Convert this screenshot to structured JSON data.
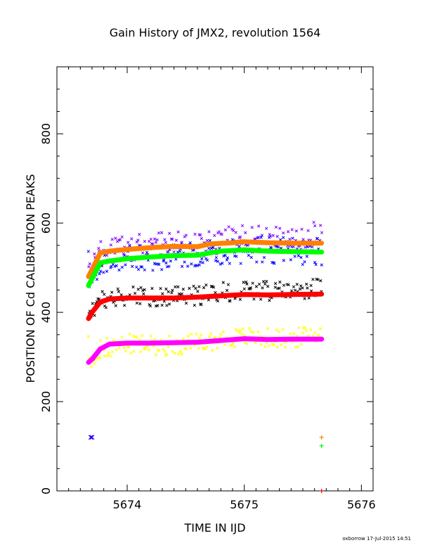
{
  "chart_data": {
    "type": "scatter",
    "title": "Gain History of JMX2, revolution 1564",
    "xlabel": "TIME IN IJD",
    "ylabel": "POSITION OF Cd CALIBRATION PEAKS",
    "xlim": [
      5673.4,
      5676.1
    ],
    "ylim": [
      0,
      950
    ],
    "x_ticks": [
      5674,
      5675,
      5676
    ],
    "x_tick_labels": [
      "5674",
      "5675",
      "5676"
    ],
    "y_ticks": [
      0,
      200,
      400,
      600,
      800
    ],
    "y_tick_labels": [
      "0",
      "200",
      "400",
      "600",
      "800"
    ],
    "grid": false,
    "legend": "none",
    "x_range_of_data": [
      5673.67,
      5675.66
    ],
    "series": [
      {
        "color": "#ff8000",
        "style": "thick-line",
        "points": [
          [
            5673.67,
            480
          ],
          [
            5673.77,
            533
          ],
          [
            5673.85,
            537
          ],
          [
            5674.0,
            541
          ],
          [
            5674.2,
            545
          ],
          [
            5674.4,
            548
          ],
          [
            5674.6,
            547
          ],
          [
            5674.7,
            553
          ],
          [
            5674.9,
            556
          ],
          [
            5675.0,
            558
          ],
          [
            5675.2,
            556
          ],
          [
            5675.4,
            555
          ],
          [
            5675.66,
            555
          ]
        ]
      },
      {
        "color": "#7f00ff",
        "style": "scatter-x",
        "center": [
          [
            5673.67,
            480
          ],
          [
            5673.77,
            535
          ],
          [
            5674.0,
            545
          ],
          [
            5674.3,
            550
          ],
          [
            5674.6,
            552
          ],
          [
            5674.8,
            560
          ],
          [
            5675.0,
            565
          ],
          [
            5675.4,
            560
          ],
          [
            5675.66,
            580
          ]
        ],
        "spread": 30
      },
      {
        "color": "#00ff00",
        "style": "thick-line",
        "points": [
          [
            5673.67,
            460
          ],
          [
            5673.77,
            511
          ],
          [
            5673.85,
            515
          ],
          [
            5674.0,
            520
          ],
          [
            5674.2,
            524
          ],
          [
            5674.4,
            527
          ],
          [
            5674.6,
            528
          ],
          [
            5674.7,
            533
          ],
          [
            5674.8,
            537
          ],
          [
            5675.0,
            540
          ],
          [
            5675.2,
            537
          ],
          [
            5675.4,
            536
          ],
          [
            5675.66,
            535
          ]
        ]
      },
      {
        "color": "#0000ff",
        "style": "scatter-x",
        "center": [
          [
            5673.67,
            465
          ],
          [
            5673.77,
            510
          ],
          [
            5674.0,
            520
          ],
          [
            5674.3,
            525
          ],
          [
            5674.6,
            528
          ],
          [
            5674.8,
            535
          ],
          [
            5675.0,
            540
          ],
          [
            5675.4,
            538
          ],
          [
            5675.66,
            535
          ]
        ],
        "spread": 30
      },
      {
        "color": "#ff0000",
        "style": "thick-line",
        "points": [
          [
            5673.67,
            386
          ],
          [
            5673.7,
            400
          ],
          [
            5673.77,
            423
          ],
          [
            5673.85,
            430
          ],
          [
            5674.0,
            432
          ],
          [
            5674.2,
            432
          ],
          [
            5674.4,
            432
          ],
          [
            5674.6,
            434
          ],
          [
            5674.8,
            437
          ],
          [
            5675.0,
            440
          ],
          [
            5675.2,
            439
          ],
          [
            5675.4,
            440
          ],
          [
            5675.66,
            441
          ]
        ]
      },
      {
        "color": "#000000",
        "style": "scatter-x",
        "center": [
          [
            5673.67,
            390
          ],
          [
            5673.77,
            425
          ],
          [
            5674.0,
            435
          ],
          [
            5674.3,
            435
          ],
          [
            5674.6,
            437
          ],
          [
            5674.8,
            445
          ],
          [
            5675.0,
            450
          ],
          [
            5675.4,
            445
          ],
          [
            5675.66,
            460
          ]
        ],
        "spread": 22
      },
      {
        "color": "#ff00ff",
        "style": "thick-line",
        "points": [
          [
            5673.67,
            288
          ],
          [
            5673.7,
            295
          ],
          [
            5673.77,
            318
          ],
          [
            5673.85,
            329
          ],
          [
            5674.0,
            331
          ],
          [
            5674.2,
            331
          ],
          [
            5674.4,
            332
          ],
          [
            5674.6,
            333
          ],
          [
            5674.8,
            337
          ],
          [
            5675.0,
            341
          ],
          [
            5675.2,
            339
          ],
          [
            5675.4,
            340
          ],
          [
            5675.66,
            340
          ]
        ]
      },
      {
        "color": "#ffff00",
        "style": "scatter-x",
        "center": [
          [
            5673.67,
            290
          ],
          [
            5673.77,
            318
          ],
          [
            5674.0,
            330
          ],
          [
            5674.3,
            325
          ],
          [
            5674.6,
            330
          ],
          [
            5674.8,
            340
          ],
          [
            5675.0,
            345
          ],
          [
            5675.4,
            340
          ],
          [
            5675.66,
            355
          ]
        ],
        "spread": 22
      }
    ],
    "markers": [
      {
        "symbol": "x",
        "color": "#7f00ff",
        "x": 5673.7,
        "y": 120
      },
      {
        "symbol": "x",
        "color": "#0000ff",
        "x": 5673.69,
        "y": 120
      },
      {
        "symbol": "+",
        "color": "#ff8000",
        "x": 5675.66,
        "y": 120
      },
      {
        "symbol": "+",
        "color": "#00ff00",
        "x": 5675.66,
        "y": 101
      },
      {
        "symbol": "+",
        "color": "#ff0000",
        "x": 5675.66,
        "y": 0
      }
    ]
  },
  "footer": {
    "credit": "oxborrow 17-Jul-2015 14:51"
  }
}
